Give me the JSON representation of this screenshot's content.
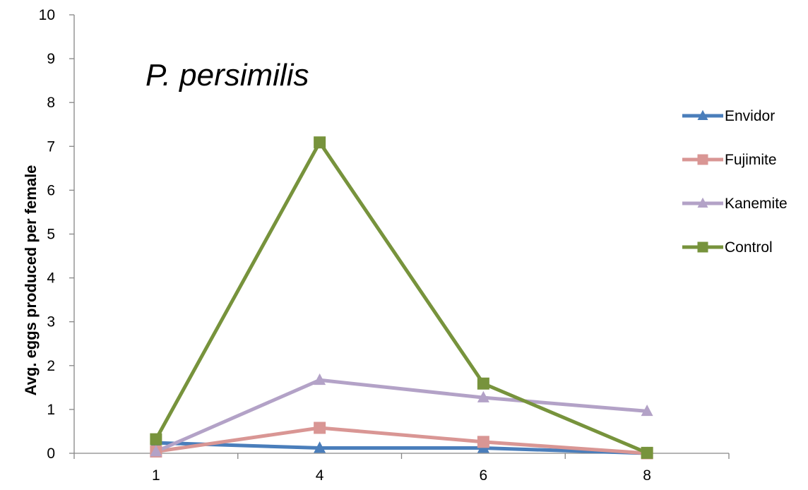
{
  "chart_data": {
    "type": "line",
    "title": "P. persimilis",
    "xlabel": "",
    "ylabel": "Avg. eggs produced per female",
    "categories": [
      "1",
      "4",
      "6",
      "8"
    ],
    "ylim": [
      0,
      10
    ],
    "yticks": [
      0,
      1,
      2,
      3,
      4,
      5,
      6,
      7,
      8,
      9,
      10
    ],
    "grid": false,
    "legend_position": "right",
    "series": [
      {
        "name": "Envidor",
        "values": [
          0.24,
          0.12,
          0.12,
          0.0
        ],
        "color": "#4a7ebb",
        "marker": "triangle"
      },
      {
        "name": "Fujimite",
        "values": [
          0.04,
          0.58,
          0.26,
          0.0
        ],
        "color": "#d99694",
        "marker": "square"
      },
      {
        "name": "Kanemite",
        "values": [
          0.04,
          1.67,
          1.27,
          0.96
        ],
        "color": "#b3a2c7",
        "marker": "triangle"
      },
      {
        "name": "Control",
        "values": [
          0.32,
          7.09,
          1.59,
          0.01
        ],
        "color": "#77933c",
        "marker": "square"
      }
    ]
  }
}
